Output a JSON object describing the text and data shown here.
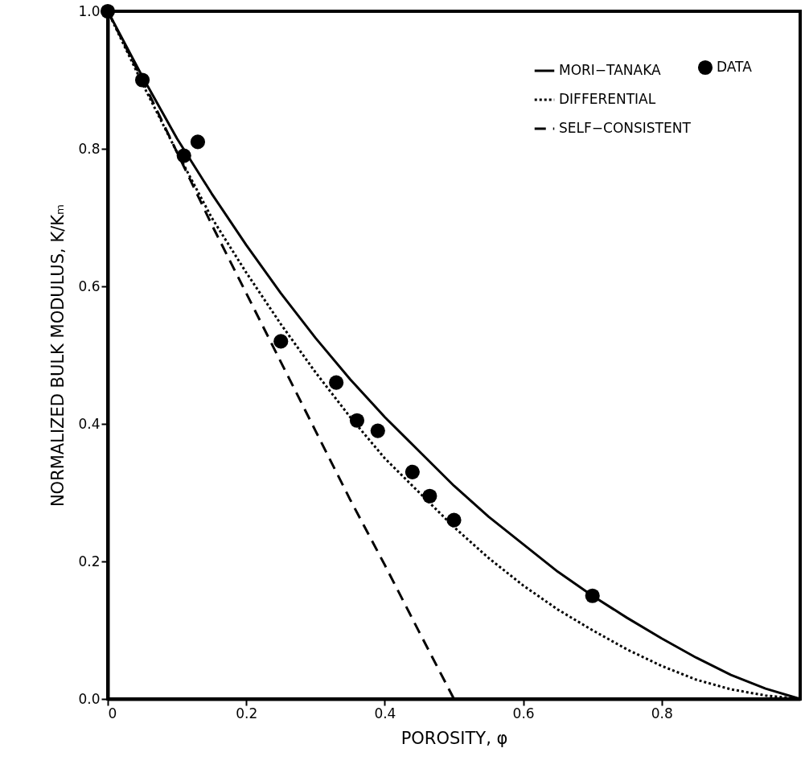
{
  "chart_data": {
    "type": "line",
    "xlabel": "POROSITY, φ",
    "ylabel": "NORMALIZED BULK MODULUS, K/Kₘ",
    "xlim": [
      0,
      1
    ],
    "ylim": [
      0,
      1
    ],
    "xticks": [
      0,
      0.2,
      0.4,
      0.6,
      0.8
    ],
    "yticks": [
      {
        "value": 0,
        "label": "0.0"
      },
      0.2,
      0.4,
      0.6,
      0.8,
      {
        "value": 1,
        "label": "1.0"
      }
    ],
    "grid": false,
    "legend": "top right",
    "series": [
      {
        "name": "MORI−TANAKA",
        "color": "#000000",
        "line_style": "solid",
        "x": [
          0,
          0.05,
          0.1,
          0.15,
          0.2,
          0.25,
          0.3,
          0.35,
          0.4,
          0.45,
          0.5,
          0.55,
          0.6,
          0.65,
          0.7,
          0.75,
          0.8,
          0.85,
          0.9,
          0.95,
          1.0
        ],
        "values": [
          1,
          0.905,
          0.815,
          0.735,
          0.66,
          0.59,
          0.525,
          0.465,
          0.41,
          0.36,
          0.31,
          0.265,
          0.225,
          0.185,
          0.15,
          0.118,
          0.088,
          0.06,
          0.035,
          0.015,
          0
        ]
      },
      {
        "name": "DIFFERENTIAL",
        "color": "#000000",
        "line_style": "dotted",
        "x": [
          0,
          0.05,
          0.1,
          0.15,
          0.2,
          0.25,
          0.3,
          0.35,
          0.4,
          0.45,
          0.5,
          0.55,
          0.6,
          0.65,
          0.7,
          0.75,
          0.8,
          0.85,
          0.9,
          0.95,
          1.0
        ],
        "values": [
          1,
          0.895,
          0.795,
          0.7,
          0.62,
          0.545,
          0.475,
          0.41,
          0.35,
          0.3,
          0.25,
          0.205,
          0.165,
          0.13,
          0.1,
          0.072,
          0.048,
          0.028,
          0.014,
          0.005,
          0
        ]
      },
      {
        "name": "SELF−CONSISTENT",
        "color": "#000000",
        "line_style": "dashed",
        "x": [
          0,
          0.05,
          0.1,
          0.15,
          0.2,
          0.25,
          0.3,
          0.35,
          0.4,
          0.45,
          0.5
        ],
        "values": [
          1,
          0.9,
          0.795,
          0.69,
          0.59,
          0.49,
          0.39,
          0.29,
          0.195,
          0.097,
          0
        ]
      },
      {
        "name": "DATA",
        "color": "#000000",
        "type": "scatter",
        "marker": "circle",
        "x": [
          0,
          0.05,
          0.11,
          0.13,
          0.25,
          0.33,
          0.36,
          0.39,
          0.44,
          0.465,
          0.5,
          0.7
        ],
        "values": [
          1,
          0.9,
          0.79,
          0.81,
          0.52,
          0.46,
          0.405,
          0.39,
          0.33,
          0.295,
          0.26,
          0.15
        ]
      }
    ]
  }
}
